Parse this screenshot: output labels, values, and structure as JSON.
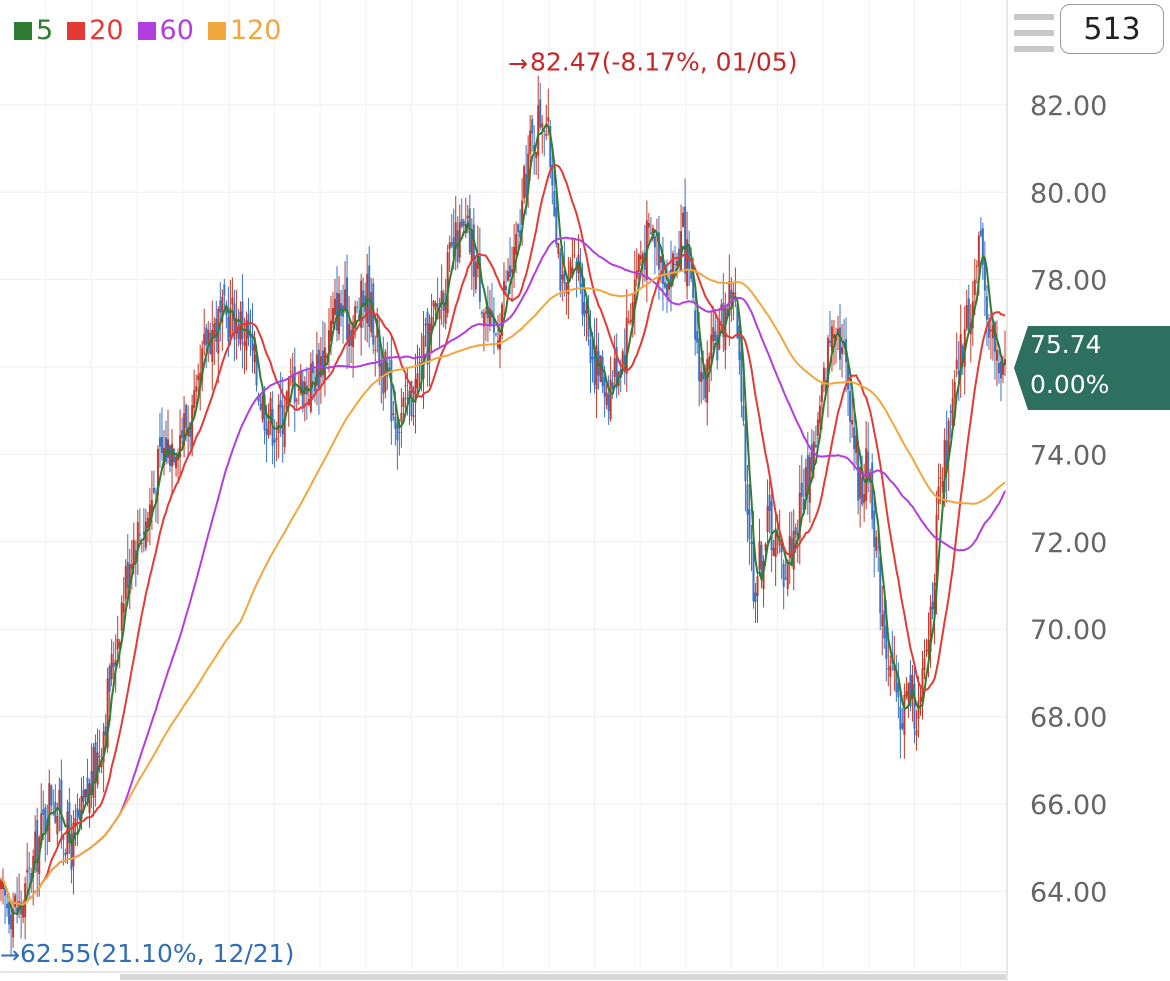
{
  "legend": [
    {
      "label": "5",
      "color": "#2e7d32"
    },
    {
      "label": "20",
      "color": "#e53935"
    },
    {
      "label": "60",
      "color": "#b23ee0"
    },
    {
      "label": "120",
      "color": "#f0a73c"
    }
  ],
  "period": "513",
  "current_price": {
    "value": "75.74",
    "change": "0.00%",
    "color": "#2e7060"
  },
  "chart_data": {
    "type": "candlestick",
    "ylim": [
      62.2,
      84.4
    ],
    "y_ticks": [
      "82.00",
      "80.00",
      "78.00",
      "76.00",
      "74.00",
      "72.00",
      "70.00",
      "68.00",
      "66.00",
      "64.00"
    ],
    "grid": true,
    "high_annotation": {
      "text": "82.47(-8.17%, 01/05)",
      "value": 82.47,
      "color": "#c62828"
    },
    "low_annotation": {
      "text": "62.55(21.10%, 12/21)",
      "value": 62.55,
      "color": "#2f6db5"
    },
    "price_path": [
      [
        0,
        63.8
      ],
      [
        0.02,
        63.6
      ],
      [
        0.035,
        64.9
      ],
      [
        0.05,
        66.3
      ],
      [
        0.07,
        65.0
      ],
      [
        0.085,
        66.0
      ],
      [
        0.1,
        67.5
      ],
      [
        0.115,
        69.8
      ],
      [
        0.13,
        72.0
      ],
      [
        0.145,
        72.5
      ],
      [
        0.16,
        74.0
      ],
      [
        0.18,
        74.6
      ],
      [
        0.195,
        75.0
      ],
      [
        0.205,
        76.8
      ],
      [
        0.23,
        77.2
      ],
      [
        0.245,
        76.8
      ],
      [
        0.26,
        75.2
      ],
      [
        0.275,
        74.6
      ],
      [
        0.29,
        75.7
      ],
      [
        0.305,
        75.6
      ],
      [
        0.32,
        76.2
      ],
      [
        0.335,
        77.4
      ],
      [
        0.35,
        77.0
      ],
      [
        0.365,
        77.7
      ],
      [
        0.38,
        76.0
      ],
      [
        0.395,
        74.8
      ],
      [
        0.41,
        75.3
      ],
      [
        0.425,
        76.6
      ],
      [
        0.44,
        77.8
      ],
      [
        0.455,
        78.9
      ],
      [
        0.465,
        79.0
      ],
      [
        0.475,
        78.2
      ],
      [
        0.49,
        76.5
      ],
      [
        0.5,
        77.6
      ],
      [
        0.515,
        78.8
      ],
      [
        0.525,
        80.8
      ],
      [
        0.54,
        82.0
      ],
      [
        0.55,
        80.3
      ],
      [
        0.56,
        77.4
      ],
      [
        0.575,
        78.4
      ],
      [
        0.59,
        76.2
      ],
      [
        0.605,
        75.5
      ],
      [
        0.62,
        76.4
      ],
      [
        0.635,
        78.5
      ],
      [
        0.65,
        79.1
      ],
      [
        0.665,
        78.0
      ],
      [
        0.68,
        79.0
      ],
      [
        0.69,
        77.0
      ],
      [
        0.7,
        75.5
      ],
      [
        0.715,
        76.8
      ],
      [
        0.73,
        78.0
      ],
      [
        0.74,
        74.0
      ],
      [
        0.75,
        71.0
      ],
      [
        0.765,
        72.5
      ],
      [
        0.78,
        71.4
      ],
      [
        0.79,
        72.2
      ],
      [
        0.8,
        73.2
      ],
      [
        0.815,
        74.8
      ],
      [
        0.83,
        77.4
      ],
      [
        0.845,
        75.5
      ],
      [
        0.855,
        73.2
      ],
      [
        0.865,
        73.8
      ],
      [
        0.875,
        71.0
      ],
      [
        0.885,
        69.2
      ],
      [
        0.895,
        68.0
      ],
      [
        0.905,
        68.6
      ],
      [
        0.915,
        68.0
      ],
      [
        0.925,
        70.2
      ],
      [
        0.935,
        73.0
      ],
      [
        0.945,
        74.5
      ],
      [
        0.955,
        76.2
      ],
      [
        0.965,
        77.4
      ],
      [
        0.975,
        78.6
      ],
      [
        0.985,
        77.0
      ],
      [
        0.995,
        75.8
      ],
      [
        1.0,
        75.74
      ]
    ]
  }
}
